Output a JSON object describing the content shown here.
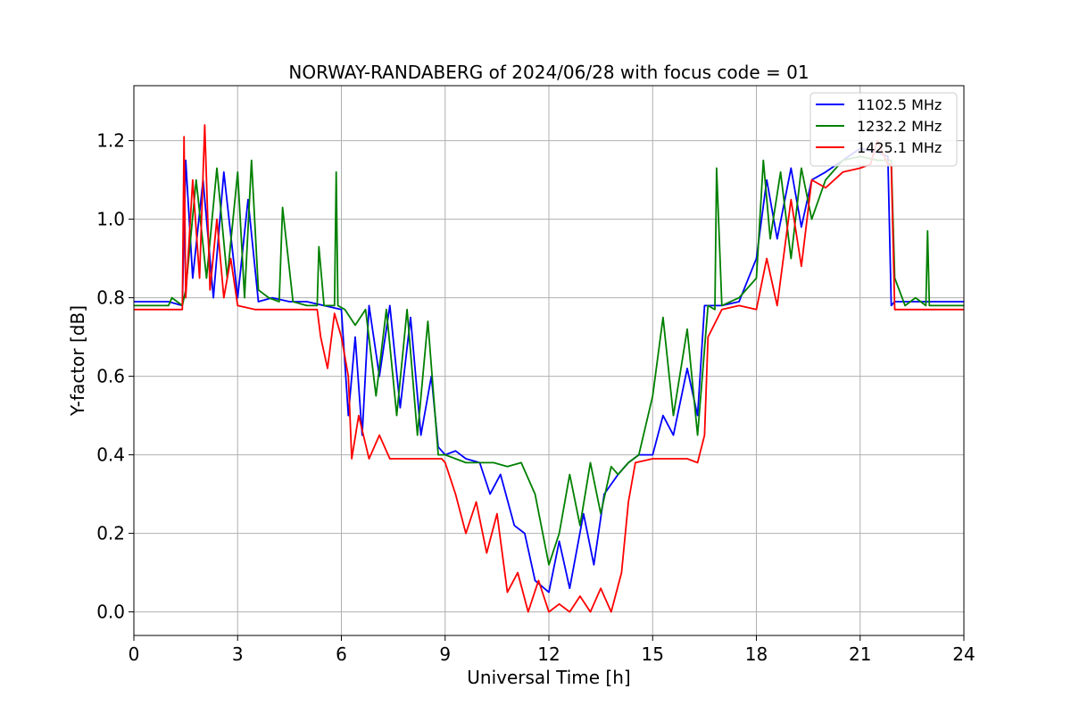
{
  "chart_data": {
    "type": "line",
    "title": "NORWAY-RANDABERG of 2024/06/28 with focus code = 01",
    "xlabel": "Universal Time [h]",
    "ylabel": "Y-factor [dB]",
    "xlim": [
      0,
      24
    ],
    "ylim": [
      -0.06,
      1.34
    ],
    "xticks": [
      0,
      3,
      6,
      9,
      12,
      15,
      18,
      21,
      24
    ],
    "yticks": [
      0.0,
      0.2,
      0.4,
      0.6,
      0.8,
      1.0,
      1.2
    ],
    "xtick_labels": [
      "0",
      "3",
      "6",
      "9",
      "12",
      "15",
      "18",
      "21",
      "24"
    ],
    "ytick_labels": [
      "0.0",
      "0.2",
      "0.4",
      "0.6",
      "0.8",
      "1.0",
      "1.2"
    ],
    "grid": true,
    "legend_position": "top-right",
    "series": [
      {
        "name": "1102.5 MHz",
        "color": "#0000ff",
        "x": [
          0,
          1.0,
          1.4,
          1.5,
          1.7,
          2.0,
          2.3,
          2.6,
          3.0,
          3.3,
          3.6,
          4.0,
          4.5,
          5.0,
          5.5,
          6.0,
          6.2,
          6.4,
          6.6,
          6.8,
          7.1,
          7.4,
          7.7,
          8.0,
          8.3,
          8.6,
          8.8,
          9.0,
          9.3,
          9.6,
          10.0,
          10.3,
          10.6,
          11.0,
          11.3,
          11.6,
          12.0,
          12.3,
          12.6,
          13.0,
          13.3,
          13.6,
          14.0,
          14.3,
          14.6,
          15.0,
          15.3,
          15.6,
          16.0,
          16.3,
          16.5,
          17.0,
          17.5,
          18.0,
          18.3,
          18.6,
          19.0,
          19.3,
          19.6,
          20.0,
          20.5,
          21.0,
          21.5,
          21.8,
          21.9,
          22.0,
          22.5,
          23.0,
          23.5,
          24.0
        ],
        "y": [
          0.79,
          0.79,
          0.78,
          1.15,
          0.85,
          1.1,
          0.8,
          1.12,
          0.8,
          1.05,
          0.79,
          0.8,
          0.79,
          0.79,
          0.78,
          0.77,
          0.5,
          0.7,
          0.45,
          0.78,
          0.6,
          0.78,
          0.52,
          0.75,
          0.45,
          0.6,
          0.42,
          0.4,
          0.41,
          0.39,
          0.38,
          0.3,
          0.35,
          0.22,
          0.2,
          0.08,
          0.05,
          0.18,
          0.06,
          0.25,
          0.12,
          0.3,
          0.35,
          0.38,
          0.4,
          0.4,
          0.5,
          0.45,
          0.62,
          0.5,
          0.78,
          0.78,
          0.79,
          0.9,
          1.1,
          0.95,
          1.13,
          0.98,
          1.1,
          1.12,
          1.15,
          1.18,
          1.17,
          1.16,
          0.78,
          0.79,
          0.79,
          0.79,
          0.79,
          0.79
        ]
      },
      {
        "name": "1232.2 MHz",
        "color": "#008000",
        "x": [
          0,
          1.0,
          1.1,
          1.4,
          1.5,
          1.8,
          2.1,
          2.4,
          2.7,
          3.0,
          3.2,
          3.4,
          3.6,
          3.9,
          4.2,
          4.3,
          4.6,
          5.0,
          5.3,
          5.35,
          5.5,
          5.8,
          5.85,
          5.9,
          6.1,
          6.4,
          6.7,
          7.0,
          7.3,
          7.6,
          7.9,
          8.2,
          8.5,
          8.8,
          9.0,
          9.3,
          9.6,
          10.0,
          10.4,
          10.8,
          11.2,
          11.6,
          12.0,
          12.3,
          12.6,
          12.9,
          13.2,
          13.5,
          13.8,
          14.0,
          14.3,
          14.6,
          15.0,
          15.3,
          15.6,
          16.0,
          16.3,
          16.6,
          16.8,
          16.85,
          17.0,
          17.5,
          18.0,
          18.2,
          18.4,
          18.7,
          19.0,
          19.3,
          19.6,
          20.0,
          20.5,
          21.0,
          21.5,
          21.9,
          22.0,
          22.3,
          22.6,
          22.9,
          22.95,
          23.0,
          23.5,
          24.0
        ],
        "y": [
          0.78,
          0.78,
          0.8,
          0.78,
          0.82,
          1.1,
          0.85,
          1.13,
          0.85,
          1.12,
          0.8,
          1.15,
          0.82,
          0.8,
          0.79,
          1.03,
          0.79,
          0.78,
          0.78,
          0.93,
          0.78,
          0.78,
          1.12,
          0.78,
          0.77,
          0.73,
          0.77,
          0.55,
          0.77,
          0.5,
          0.77,
          0.45,
          0.74,
          0.4,
          0.4,
          0.39,
          0.38,
          0.38,
          0.38,
          0.37,
          0.38,
          0.3,
          0.12,
          0.2,
          0.35,
          0.22,
          0.38,
          0.25,
          0.37,
          0.35,
          0.38,
          0.4,
          0.55,
          0.75,
          0.5,
          0.72,
          0.45,
          0.78,
          0.77,
          1.13,
          0.78,
          0.8,
          0.85,
          1.15,
          0.95,
          1.12,
          0.9,
          1.13,
          1.0,
          1.1,
          1.15,
          1.16,
          1.15,
          1.15,
          0.85,
          0.78,
          0.8,
          0.78,
          0.97,
          0.78,
          0.78,
          0.78
        ]
      },
      {
        "name": "1425.1 MHz",
        "color": "#ff0000",
        "x": [
          0,
          1.0,
          1.4,
          1.45,
          1.5,
          1.7,
          1.9,
          2.05,
          2.2,
          2.4,
          2.6,
          2.8,
          3.0,
          3.5,
          4.0,
          4.5,
          5.0,
          5.3,
          5.4,
          5.6,
          5.8,
          6.0,
          6.2,
          6.3,
          6.5,
          6.8,
          7.1,
          7.4,
          7.7,
          8.0,
          8.3,
          8.6,
          8.9,
          9.0,
          9.3,
          9.6,
          9.9,
          10.2,
          10.5,
          10.8,
          11.1,
          11.4,
          11.7,
          12.0,
          12.3,
          12.6,
          12.9,
          13.2,
          13.5,
          13.8,
          14.1,
          14.3,
          14.5,
          15.0,
          15.5,
          16.0,
          16.3,
          16.5,
          16.6,
          17.0,
          17.5,
          18.0,
          18.3,
          18.6,
          19.0,
          19.3,
          19.6,
          20.0,
          20.5,
          21.0,
          21.3,
          21.5,
          21.8,
          21.9,
          22.0,
          22.5,
          23.0,
          23.5,
          24.0
        ],
        "y": [
          0.77,
          0.77,
          0.77,
          1.21,
          0.8,
          1.1,
          0.85,
          1.24,
          0.82,
          1.0,
          0.8,
          0.9,
          0.78,
          0.77,
          0.77,
          0.77,
          0.77,
          0.77,
          0.7,
          0.62,
          0.76,
          0.7,
          0.6,
          0.39,
          0.5,
          0.39,
          0.45,
          0.39,
          0.39,
          0.39,
          0.39,
          0.39,
          0.39,
          0.38,
          0.3,
          0.2,
          0.28,
          0.15,
          0.25,
          0.05,
          0.1,
          0.0,
          0.08,
          0.0,
          0.02,
          0.0,
          0.04,
          0.0,
          0.06,
          0.0,
          0.1,
          0.28,
          0.38,
          0.39,
          0.39,
          0.39,
          0.38,
          0.45,
          0.7,
          0.77,
          0.78,
          0.77,
          0.9,
          0.78,
          1.05,
          0.88,
          1.1,
          1.08,
          1.12,
          1.13,
          1.14,
          1.2,
          1.14,
          1.14,
          0.77,
          0.77,
          0.77,
          0.77,
          0.77
        ]
      }
    ]
  }
}
